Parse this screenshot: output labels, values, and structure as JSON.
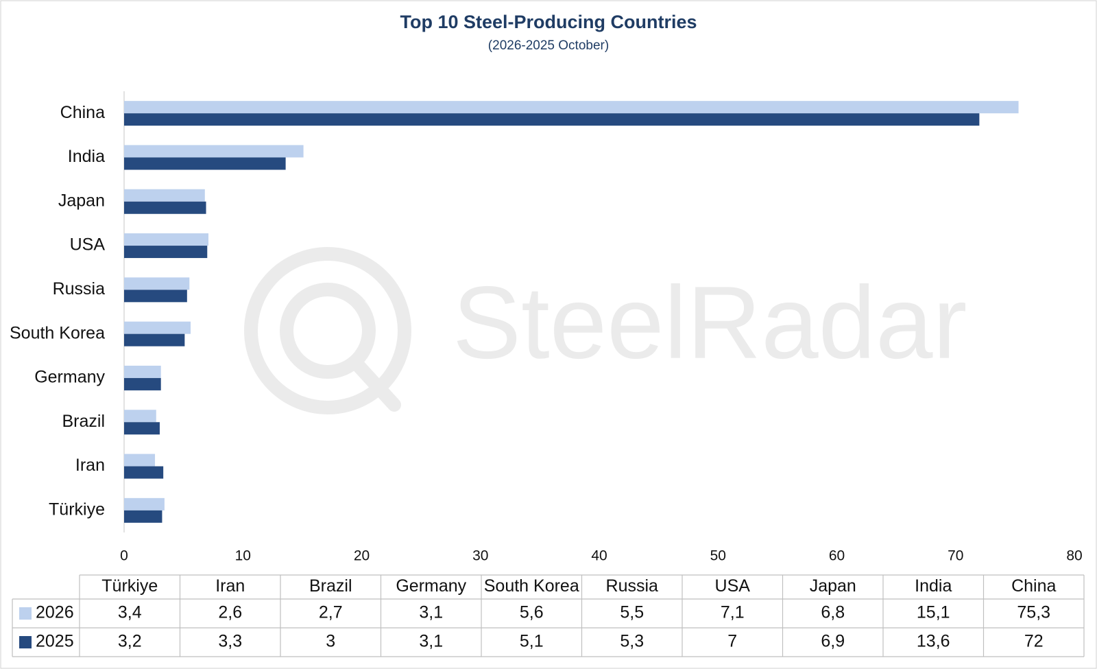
{
  "chart_data": {
    "type": "hbar",
    "title": "Top 10 Steel-Producing Countries",
    "subtitle": "(2026-2025 October)",
    "watermark": "SteelRadar",
    "categories": [
      "Türkiye",
      "Iran",
      "Brazil",
      "Germany",
      "South Korea",
      "Russia",
      "USA",
      "Japan",
      "India",
      "China"
    ],
    "series": [
      {
        "name": "2026",
        "color": "#bdd1ee",
        "values": [
          3.4,
          2.6,
          2.7,
          3.1,
          5.6,
          5.5,
          7.1,
          6.8,
          15.1,
          75.3
        ],
        "value_labels": [
          "3,4",
          "2,6",
          "2,7",
          "3,1",
          "5,6",
          "5,5",
          "7,1",
          "6,8",
          "15,1",
          "75,3"
        ]
      },
      {
        "name": "2025",
        "color": "#264a7f",
        "values": [
          3.2,
          3.3,
          3,
          3.1,
          5.1,
          5.3,
          7,
          6.9,
          13.6,
          72
        ],
        "value_labels": [
          "3,2",
          "3,3",
          "3",
          "3,1",
          "5,1",
          "5,3",
          "7",
          "6,9",
          "13,6",
          "72"
        ]
      }
    ],
    "xlim": [
      0,
      80
    ],
    "xticks": [
      0,
      10,
      20,
      30,
      40,
      50,
      60,
      70,
      80
    ],
    "grid": false
  }
}
